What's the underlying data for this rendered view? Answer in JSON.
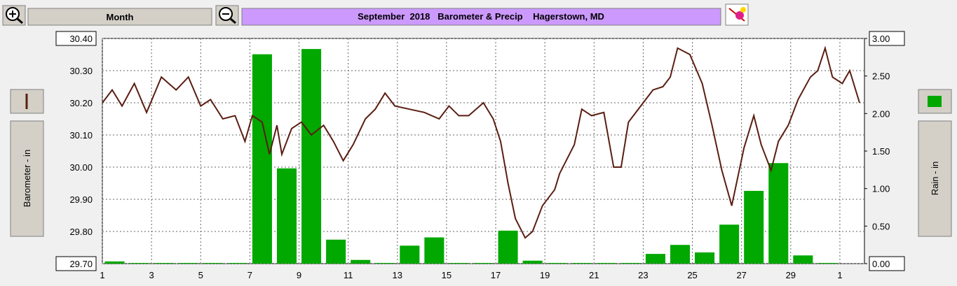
{
  "toolbar": {
    "period": "Month"
  },
  "chart_data": {
    "type": "combo",
    "title": "September  2018   Barometer & Precip    Hagerstown, MD",
    "xlim": [
      1,
      32
    ],
    "xticks": [
      1,
      3,
      5,
      7,
      9,
      11,
      13,
      15,
      17,
      19,
      21,
      23,
      25,
      27,
      29,
      {
        "value": 31,
        "label": "1"
      }
    ],
    "ylim": [
      29.7,
      30.4
    ],
    "yticks": [
      {
        "value": 29.7,
        "label": "29.70"
      },
      {
        "value": 29.8,
        "label": "29.80"
      },
      {
        "value": 29.9,
        "label": "29.90"
      },
      {
        "value": 30.0,
        "label": "30.00"
      },
      {
        "value": 30.1,
        "label": "30.10"
      },
      {
        "value": 30.2,
        "label": "30.20"
      },
      {
        "value": 30.3,
        "label": "30.30"
      },
      {
        "value": 30.4,
        "label": "30.40"
      }
    ],
    "y2lim": [
      0,
      3
    ],
    "y2ticks": [
      {
        "value": 0,
        "label": "0.00"
      },
      {
        "value": 0.5,
        "label": "0.50"
      },
      {
        "value": 1,
        "label": "1.00"
      },
      {
        "value": 1.5,
        "label": "1.50"
      },
      {
        "value": 2,
        "label": "2.00"
      },
      {
        "value": 2.5,
        "label": "2.50"
      },
      {
        "value": 3,
        "label": "3.00"
      }
    ],
    "grid": true,
    "series": [
      {
        "name": "Barometer - in",
        "type": "line",
        "color": "#5a1e12",
        "x": [
          1.0,
          1.4,
          1.8,
          2.3,
          2.8,
          3.4,
          4.0,
          4.5,
          5.0,
          5.4,
          5.9,
          6.4,
          6.8,
          7.1,
          7.5,
          7.8,
          8.1,
          8.3,
          8.7,
          9.1,
          9.5,
          10.0,
          10.4,
          10.8,
          11.2,
          11.7,
          12.1,
          12.5,
          12.9,
          13.5,
          14.1,
          14.7,
          15.1,
          15.5,
          15.9,
          16.5,
          16.9,
          17.2,
          17.5,
          17.8,
          18.2,
          18.5,
          18.9,
          19.4,
          19.6,
          20.2,
          20.5,
          20.9,
          21.4,
          21.8,
          22.1,
          22.4,
          22.9,
          23.4,
          23.8,
          24.1,
          24.4,
          24.9,
          25.4,
          25.8,
          26.2,
          26.6,
          27.1,
          27.5,
          27.8,
          28.2,
          28.5,
          28.9,
          29.3,
          29.8,
          30.1,
          30.4,
          30.7,
          31.1,
          31.4,
          31.8
        ],
        "values": [
          30.2,
          30.24,
          30.19,
          30.26,
          30.17,
          30.28,
          30.24,
          30.28,
          30.19,
          30.21,
          30.15,
          30.16,
          30.08,
          30.16,
          30.14,
          30.04,
          30.13,
          30.04,
          30.12,
          30.14,
          30.1,
          30.13,
          30.08,
          30.02,
          30.07,
          30.15,
          30.18,
          30.23,
          30.19,
          30.18,
          30.17,
          30.15,
          30.19,
          30.16,
          30.16,
          30.2,
          30.15,
          30.08,
          29.95,
          29.84,
          29.78,
          29.8,
          29.88,
          29.93,
          29.98,
          30.07,
          30.18,
          30.16,
          30.17,
          30.0,
          30.0,
          30.14,
          30.19,
          30.24,
          30.25,
          30.28,
          30.37,
          30.35,
          30.26,
          30.13,
          29.99,
          29.88,
          30.06,
          30.16,
          30.07,
          29.99,
          30.08,
          30.13,
          30.21,
          30.28,
          30.3,
          30.37,
          30.28,
          30.26,
          30.3,
          30.2
        ]
      },
      {
        "name": "Rain - in",
        "type": "bar",
        "axis": "y2",
        "color": "#00a800",
        "x": [
          1,
          2,
          3,
          4,
          5,
          6,
          7,
          8,
          9,
          10,
          11,
          12,
          13,
          14,
          15,
          16,
          17,
          18,
          19,
          20,
          21,
          22,
          23,
          24,
          25,
          26,
          27,
          28,
          29,
          30
        ],
        "values": [
          0.02,
          0,
          0,
          0,
          0,
          0,
          2.78,
          1.26,
          2.85,
          0.31,
          0.04,
          0,
          0.23,
          0.34,
          0,
          0,
          0.43,
          0.03,
          0,
          0,
          0,
          0,
          0.12,
          0.24,
          0.14,
          0.51,
          0.96,
          1.33,
          0.1,
          0
        ]
      }
    ]
  }
}
